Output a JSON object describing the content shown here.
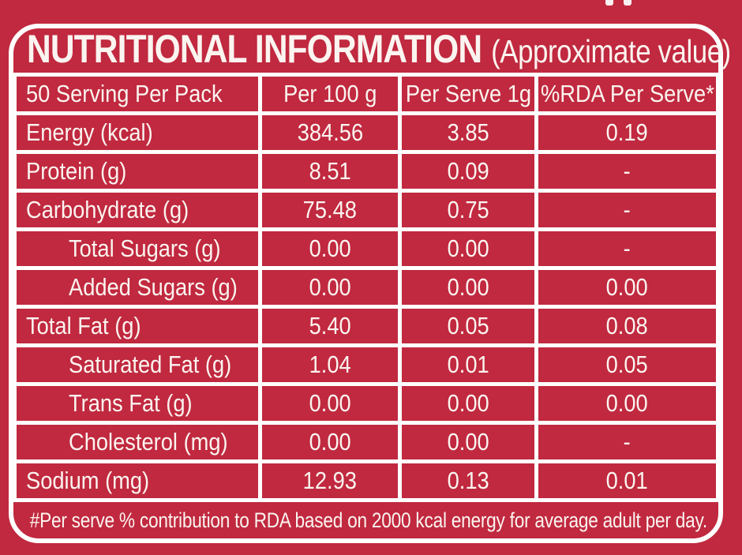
{
  "colors": {
    "background_red": "#C0293F",
    "grid_line_white": "#FFFFFF",
    "text_white": "#FBF4F0"
  },
  "title": {
    "main": "NUTRITIONAL INFORMATION",
    "suffix": "(Approximate value)"
  },
  "table": {
    "headers": [
      "50 Serving Per Pack",
      "Per 100 g",
      "Per Serve 1g",
      "%RDA Per Serve*"
    ],
    "rows": [
      {
        "label": "Energy (kcal)",
        "indent": false,
        "per100g": "384.56",
        "perServe": "3.85",
        "rda": "0.19"
      },
      {
        "label": "Protein (g)",
        "indent": false,
        "per100g": "8.51",
        "perServe": "0.09",
        "rda": "-"
      },
      {
        "label": "Carbohydrate (g)",
        "indent": false,
        "per100g": "75.48",
        "perServe": "0.75",
        "rda": "-"
      },
      {
        "label": "Total Sugars (g)",
        "indent": true,
        "per100g": "0.00",
        "perServe": "0.00",
        "rda": "-"
      },
      {
        "label": "Added Sugars (g)",
        "indent": true,
        "per100g": "0.00",
        "perServe": "0.00",
        "rda": "0.00"
      },
      {
        "label": "Total Fat (g)",
        "indent": false,
        "per100g": "5.40",
        "perServe": "0.05",
        "rda": "0.08"
      },
      {
        "label": "Saturated Fat (g)",
        "indent": true,
        "per100g": "1.04",
        "perServe": "0.01",
        "rda": "0.05"
      },
      {
        "label": "Trans Fat (g)",
        "indent": true,
        "per100g": "0.00",
        "perServe": "0.00",
        "rda": "0.00"
      },
      {
        "label": "Cholesterol (mg)",
        "indent": true,
        "per100g": "0.00",
        "perServe": "0.00",
        "rda": "-"
      },
      {
        "label": "Sodium (mg)",
        "indent": false,
        "per100g": "12.93",
        "perServe": "0.13",
        "rda": "0.01"
      }
    ]
  },
  "footnote": "#Per serve % contribution to RDA based on 2000 kcal energy for average adult per day."
}
